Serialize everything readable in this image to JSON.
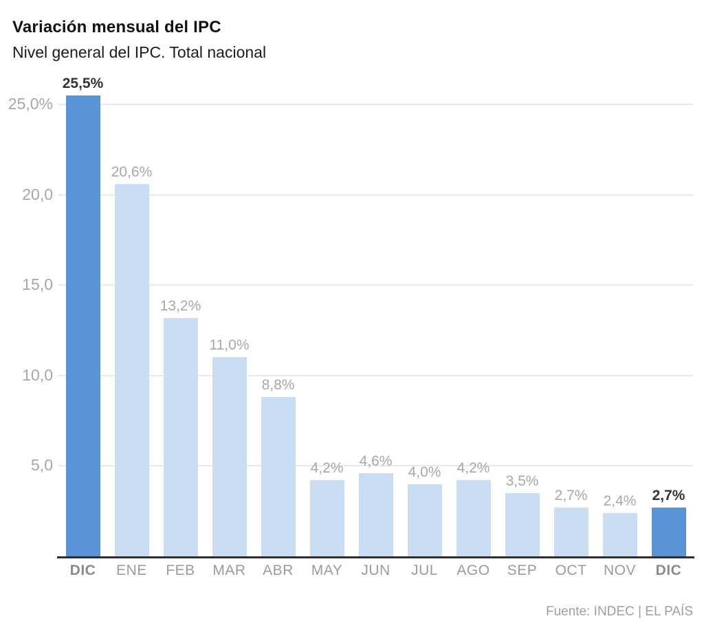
{
  "header": {
    "title": "Variación mensual del IPC",
    "subtitle": "Nivel general del IPC. Total nacional"
  },
  "footer": {
    "source": "Fuente: INDEC | EL PAÍS"
  },
  "chart_data": {
    "type": "bar",
    "title": "Variación mensual del IPC",
    "subtitle": "Nivel general del IPC. Total nacional",
    "xlabel": "",
    "ylabel": "",
    "categories": [
      "DIC",
      "ENE",
      "FEB",
      "MAR",
      "ABR",
      "MAY",
      "JUN",
      "JUL",
      "AGO",
      "SEP",
      "OCT",
      "NOV",
      "DIC"
    ],
    "values": [
      25.5,
      20.6,
      13.2,
      11.0,
      8.8,
      4.2,
      4.6,
      4.0,
      4.2,
      3.5,
      2.7,
      2.4,
      2.7
    ],
    "value_labels": [
      "25,5%",
      "20,6%",
      "13,2%",
      "11,0%",
      "8,8%",
      "4,2%",
      "4,6%",
      "4,0%",
      "4,2%",
      "3,5%",
      "2,7%",
      "2,4%",
      "2,7%"
    ],
    "highlighted_indices": [
      0,
      12
    ],
    "ylim": [
      0,
      25
    ],
    "y_ticks": [
      {
        "value": 25,
        "label": "25,0%"
      },
      {
        "value": 20,
        "label": "20,0"
      },
      {
        "value": 15,
        "label": "15,0"
      },
      {
        "value": 10,
        "label": "10,0"
      },
      {
        "value": 5,
        "label": "5,0"
      }
    ],
    "grid": "horizontal",
    "legend": "none",
    "colors": {
      "bar": "#cbddf3",
      "bar_highlight": "#5b91d5",
      "value_label": "#a7a7a7",
      "value_label_highlight": "#333333",
      "tick_label": "#a7a7a7",
      "month_label": "#9b9b9b",
      "month_label_highlight": "#8a8a8a",
      "gridline": "#e9e9e9",
      "axis_line": "#2d2d2d",
      "background": "#ffffff"
    }
  }
}
